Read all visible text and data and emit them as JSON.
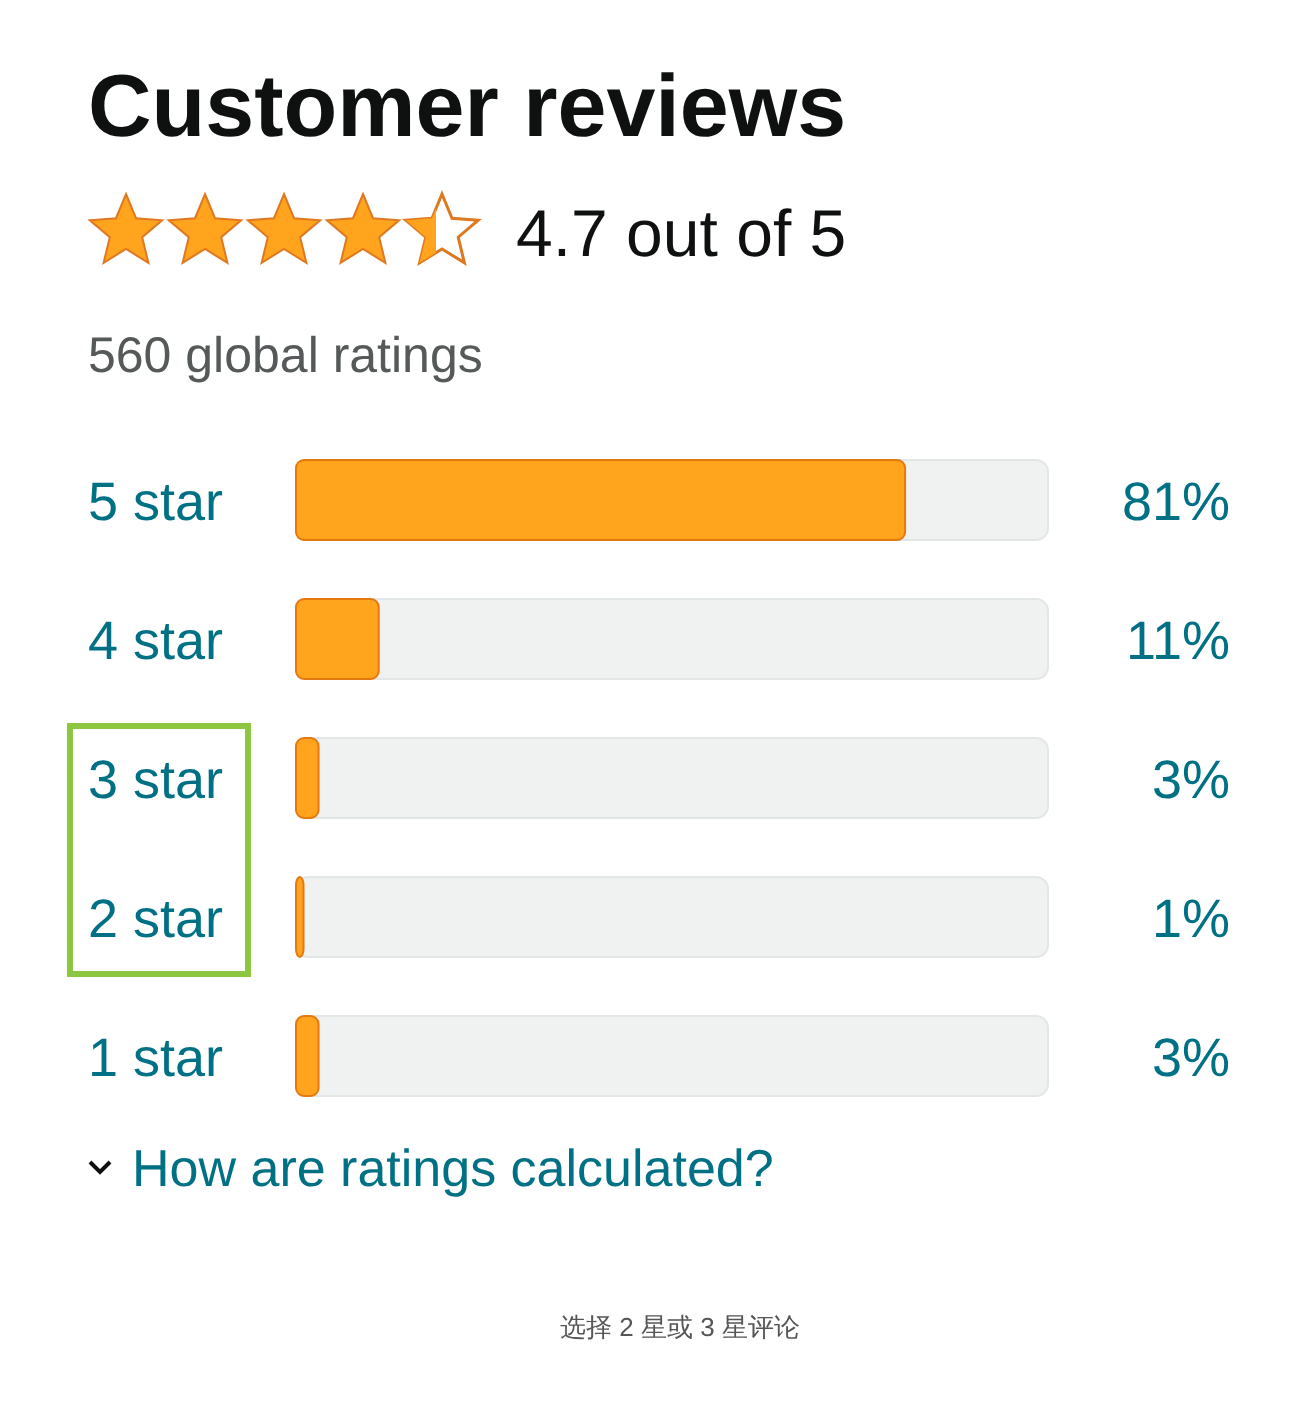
{
  "chart_data": {
    "type": "bar",
    "orientation": "horizontal",
    "title": "Customer reviews",
    "subtitle": "4.7 out of 5",
    "annotations": [
      "560 global ratings",
      "How are ratings calculated?",
      "选择 2 星或 3 星评论"
    ],
    "categories": [
      "5 star",
      "4 star",
      "3 star",
      "2 star",
      "1 star"
    ],
    "values": [
      81,
      11,
      3,
      1,
      3
    ],
    "value_labels": [
      "81%",
      "11%",
      "3%",
      "1%",
      "3%"
    ],
    "color": "#ffa41c",
    "xlim": [
      0,
      100
    ]
  }
}
